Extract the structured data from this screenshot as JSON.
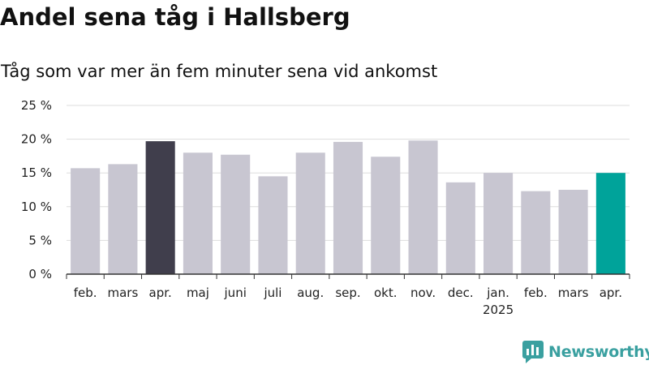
{
  "title": "Andel sena tåg i Hallsberg",
  "subtitle": "Tåg som var mer än fem minuter sena vid ankomst",
  "brand": {
    "name": "Newsworthy",
    "color": "#3aa0a0"
  },
  "colors": {
    "default": "#c8c6d1",
    "comparison": "#403e4c",
    "latest": "#00a39a",
    "grid": "#dddddd",
    "axis": "#333333"
  },
  "chart_data": {
    "type": "bar",
    "categories": [
      "feb.",
      "mars",
      "apr.",
      "maj",
      "juni",
      "juli",
      "aug.",
      "sep.",
      "okt.",
      "nov.",
      "dec.",
      "jan.",
      "feb.",
      "mars",
      "apr."
    ],
    "year_labels": [
      "",
      "",
      "",
      "",
      "",
      "",
      "",
      "",
      "",
      "",
      "",
      "2025",
      "",
      "",
      ""
    ],
    "values": [
      15.7,
      16.3,
      19.7,
      18.0,
      17.7,
      14.5,
      18.0,
      19.6,
      17.4,
      19.8,
      13.6,
      15.0,
      12.3,
      12.5,
      15.0
    ],
    "highlight": [
      "default",
      "default",
      "comparison",
      "default",
      "default",
      "default",
      "default",
      "default",
      "default",
      "default",
      "default",
      "default",
      "default",
      "default",
      "latest"
    ],
    "ylim": [
      0,
      25
    ],
    "yticks": [
      0,
      5,
      10,
      15,
      20,
      25
    ],
    "ytick_labels": [
      "0 %",
      "5 %",
      "10 %",
      "15 %",
      "20 %",
      "25 %"
    ],
    "grid": true,
    "xlabel": "",
    "ylabel": ""
  }
}
